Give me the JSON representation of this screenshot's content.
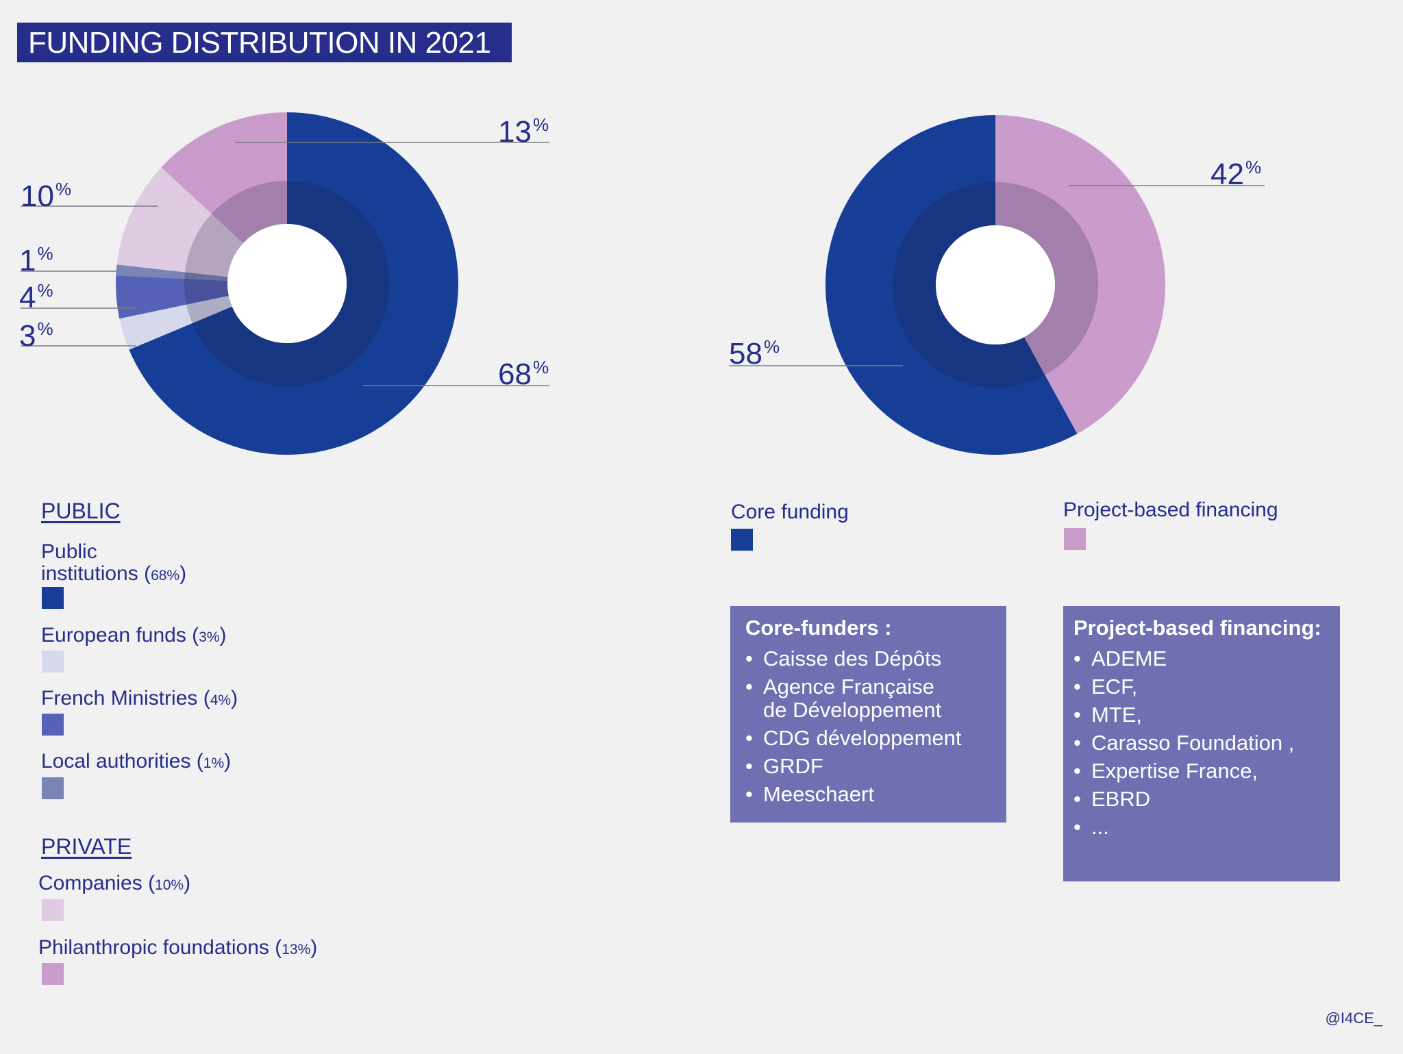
{
  "title": "FUNDING DISTRIBUTION IN 2021",
  "chart_data": [
    {
      "type": "pie",
      "variant": "donut",
      "slices": [
        {
          "key": "public_institutions",
          "label": "Public institutions",
          "value": 68,
          "color": "#163e96"
        },
        {
          "key": "european_funds",
          "label": "European funds",
          "value": 3,
          "color": "#d6d8ec"
        },
        {
          "key": "french_ministries",
          "label": "French Ministries",
          "value": 4,
          "color": "#5562b7"
        },
        {
          "key": "local_authorities",
          "label": "Local authorities",
          "value": 1,
          "color": "#7a85b5"
        },
        {
          "key": "companies",
          "label": "Companies",
          "value": 10,
          "color": "#dfcbe2"
        },
        {
          "key": "philanthropic_foundations",
          "label": "Philanthropic foundations",
          "value": 13,
          "color": "#c99ccb"
        }
      ],
      "data_labels": {
        "public_institutions": "68",
        "european_funds": "3",
        "french_ministries": "4",
        "local_authorities": "1",
        "companies": "10",
        "philanthropic_foundations": "13"
      },
      "unit": "%"
    },
    {
      "type": "pie",
      "variant": "donut",
      "slices": [
        {
          "key": "project_based",
          "label": "Project-based financing",
          "value": 42,
          "color": "#c99ccb"
        },
        {
          "key": "core_funding",
          "label": "Core funding",
          "value": 58,
          "color": "#163e96"
        }
      ],
      "data_labels": {
        "project_based": "42",
        "core_funding": "58"
      },
      "unit": "%"
    }
  ],
  "pct_symbol": "%",
  "legend_left": {
    "public_heading": "PUBLIC",
    "private_heading": "PRIVATE",
    "items": [
      {
        "line1": "Public",
        "line2": "institutions (",
        "pct": "68%",
        "close": ")",
        "color": "#163e96"
      },
      {
        "text": "European funds (",
        "pct": "3%",
        "close": ")",
        "color": "#d6d8ec"
      },
      {
        "text": "French Ministries (",
        "pct": "4%",
        "close": ")",
        "color": "#5562b7"
      },
      {
        "text": "Local authorities (",
        "pct": "1%",
        "close": ")",
        "color": "#7a85b5"
      },
      {
        "text": "Companies (",
        "pct": "10%",
        "close": ")",
        "color": "#dfcbe2"
      },
      {
        "text": "Philanthropic foundations (",
        "pct": "13%",
        "close": ")",
        "color": "#c99ccb"
      }
    ]
  },
  "legend_right": {
    "core": {
      "label": "Core funding",
      "color": "#163e96"
    },
    "project": {
      "label": "Project-based financing",
      "color": "#c99ccb"
    }
  },
  "core_box": {
    "title": "Core-funders :",
    "items": [
      "Caisse des Dépôts",
      "Agence Française\nde Développement",
      "CDG développement",
      "GRDF",
      "Meeschaert"
    ]
  },
  "project_box": {
    "title": "Project-based financing:",
    "items": [
      "ADEME",
      "ECF,",
      "MTE,",
      "Carasso Foundation ,",
      "Expertise France,",
      "EBRD",
      "..."
    ]
  },
  "credit": "@I4CE_"
}
